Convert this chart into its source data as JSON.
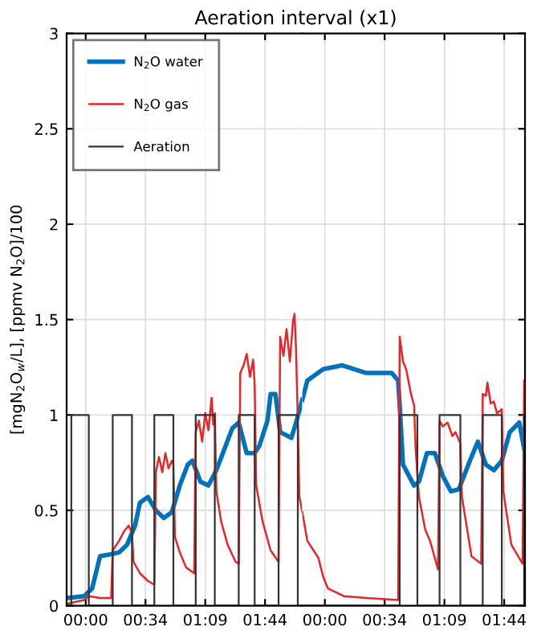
{
  "chart_data": [
    {
      "type": "line",
      "title": "Aeration interval (x1)",
      "ylabel": "[mgN$_{2}$O$_{w}$/L], [ppmv N$_{2}$O]/100",
      "xlim": [
        -11,
        125
      ],
      "xticks": [
        {
          "value": 0,
          "label": "00:00"
        },
        {
          "value": 34.5,
          "label": "00:34"
        },
        {
          "value": 69,
          "label": "01:09"
        },
        {
          "value": 103.5,
          "label": "01:44"
        }
      ],
      "ylim": [
        0,
        3
      ],
      "yticks": [
        0,
        0.5,
        1,
        1.5,
        2,
        2.5,
        3
      ],
      "grid": true,
      "legend": "top left",
      "series": [
        {
          "name": "N$_{2}$O water",
          "color": "#0072bd",
          "x": [
            -11,
            -0.9,
            3.7,
            8.3,
            14.7,
            19.3,
            23.9,
            28.5,
            31.3,
            35.9,
            40.5,
            45.1,
            49.7,
            54.3,
            58.9,
            61.6,
            66.2,
            70.8,
            75.4,
            80.0,
            84.6,
            88.3,
            92.9,
            97.5,
            100.3,
            104.9,
            106.7,
            109.5,
            112.2,
            118.7,
            121.4,
            125
          ],
          "values": [
            0.04,
            0.05,
            0.09,
            0.26,
            0.27,
            0.28,
            0.32,
            0.42,
            0.54,
            0.57,
            0.5,
            0.46,
            0.49,
            0.63,
            0.74,
            0.76,
            0.65,
            0.63,
            0.71,
            0.82,
            0.93,
            0.96,
            0.8,
            0.8,
            0.84,
            0.97,
            1.11,
            1.11,
            0.91,
            0.88,
            0.96,
            1.08
          ]
        },
        {
          "name": "N$_{2}$O gas",
          "color": "#e8262a",
          "x": [
            -11,
            -0.9,
            1.8,
            8.3,
            14.7,
            15.6,
            19.3,
            22.1,
            24.8,
            26.7,
            27.6,
            31.3,
            35.9,
            39.6,
            40.5,
            42.3,
            44.2,
            46.0,
            47.8,
            49.7,
            50.6,
            51.5,
            54.3,
            58.0,
            62.6,
            63.5,
            65.3,
            67.2,
            69.0,
            70.8,
            72.7,
            73.6,
            74.5,
            75.4,
            78.2,
            81.9,
            86.5,
            88.3,
            89.2,
            91.1,
            92.9,
            94.8,
            96.6,
            97.5,
            98.4,
            102.1,
            106.7,
            111.3,
            112.2,
            114.1,
            115.9,
            117.8,
            119.6,
            120.5,
            121.4,
            122.4,
            123.3,
            125
          ],
          "values": [
            0.01,
            0.03,
            0.05,
            0.04,
            0.04,
            0.29,
            0.34,
            0.39,
            0.42,
            0.38,
            0.23,
            0.17,
            0.13,
            0.11,
            0.7,
            0.78,
            0.7,
            0.8,
            0.72,
            0.76,
            0.74,
            0.36,
            0.28,
            0.2,
            0.17,
            0.91,
            0.97,
            0.86,
            1.01,
            0.92,
            1.09,
            0.95,
            1.01,
            0.6,
            0.44,
            0.32,
            0.23,
            0.22,
            1.22,
            1.26,
            1.32,
            1.2,
            1.29,
            1.16,
            0.63,
            0.44,
            0.29,
            0.23,
            1.41,
            1.31,
            1.45,
            1.28,
            1.49,
            1.53,
            1.34,
            0.96,
            0.57,
            0.49
          ]
        },
        {
          "name": "Aeration",
          "type": "step",
          "color": "#333333",
          "x": [
            -11,
            -8.3,
            1.8,
            15.6,
            26.7,
            39.6,
            50.6,
            63.5,
            74.5,
            88.3,
            97.5,
            111.3,
            122.4,
            125
          ],
          "values": [
            0,
            1,
            0,
            1,
            0,
            1,
            0,
            1,
            0,
            1,
            0,
            1,
            0,
            0
          ]
        }
      ]
    },
    {
      "type": "line",
      "tick_labels": "x",
      "xlim": [
        -13,
        115.5
      ],
      "xticks": [
        {
          "value": 0,
          "label": "00:00"
        },
        {
          "value": 34.5,
          "label": "00:34"
        },
        {
          "value": 69,
          "label": "01:09"
        },
        {
          "value": 103.5,
          "label": "01:44"
        }
      ],
      "ylim": [
        0,
        3
      ],
      "yticks": [
        0,
        0.5,
        1,
        1.5,
        2,
        2.5,
        3
      ],
      "grid": true,
      "series": [
        {
          "color": "#0072bd",
          "x": [
            -13,
            -10.1,
            -0.9,
            10.1,
            23.9,
            38.6,
            42.3,
            43.2,
            45.1,
            51.5,
            54.3,
            58.9,
            63.5,
            68.1,
            72.7,
            77.3,
            83.7,
            88.3,
            92.9,
            97.5,
            102.1,
            106.7,
            112.2,
            115.5
          ],
          "values": [
            1.08,
            1.18,
            1.24,
            1.26,
            1.22,
            1.22,
            1.18,
            1.05,
            0.74,
            0.63,
            0.65,
            0.8,
            0.8,
            0.68,
            0.6,
            0.61,
            0.76,
            0.86,
            0.74,
            0.71,
            0.76,
            0.91,
            0.96,
            0.8
          ]
        },
        {
          "color": "#e8262a",
          "x": [
            -13,
            -10.1,
            -3.7,
            -0.9,
            1.8,
            11.0,
            23.9,
            42.3,
            43.2,
            45.1,
            46.9,
            49.7,
            51.5,
            52.4,
            54.3,
            57.9,
            60.7,
            65.3,
            66.2,
            68.1,
            70.8,
            73.6,
            75.4,
            78.2,
            79.1,
            84.6,
            90.2,
            91.1,
            92.9,
            93.8,
            95.7,
            97.5,
            99.3,
            102.1,
            103.0,
            107.6,
            114.1,
            115.0
          ],
          "values": [
            0.49,
            0.34,
            0.25,
            0.15,
            0.09,
            0.05,
            0.04,
            0.03,
            1.41,
            1.28,
            1.24,
            1.11,
            1.05,
            0.82,
            0.57,
            0.4,
            0.34,
            0.19,
            0.97,
            0.94,
            0.96,
            0.89,
            0.91,
            0.85,
            0.57,
            0.26,
            0.22,
            1.11,
            1.1,
            1.17,
            1.06,
            1.07,
            1.01,
            1.03,
            0.6,
            0.32,
            0.22,
            1.18
          ]
        },
        {
          "type": "step",
          "color": "#333333",
          "x": [
            -13,
            43.2,
            53.4,
            66.2,
            78.2,
            91.1,
            102.1,
            115.0
          ],
          "values": [
            0,
            1,
            0,
            1,
            0,
            1,
            0,
            1
          ]
        }
      ]
    }
  ]
}
